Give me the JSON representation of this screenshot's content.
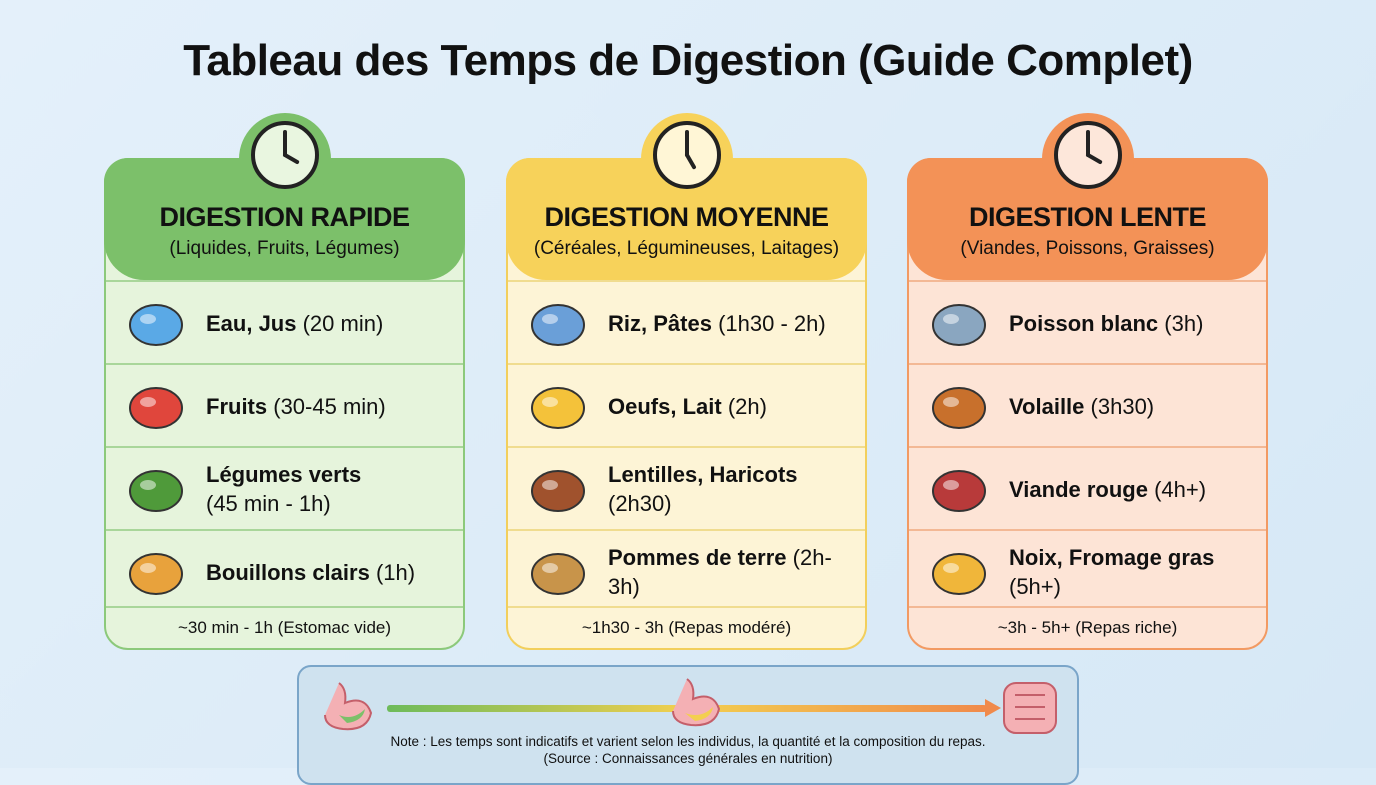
{
  "title": "Tableau des Temps de Digestion (Guide Complet)",
  "columns": [
    {
      "title": "DIGESTION RAPIDE",
      "subtitle": "(Liquides, Fruits, Légumes)",
      "items": [
        {
          "name": "Eau, Jus",
          "time": "(20 min)"
        },
        {
          "name": "Fruits",
          "time": "(30-45 min)"
        },
        {
          "name": "Légumes verts",
          "time": "(45 min - 1h)"
        },
        {
          "name": "Bouillons clairs",
          "time": "(1h)"
        }
      ],
      "footer": "~30 min - 1h (Estomac vide)"
    },
    {
      "title": "DIGESTION MOYENNE",
      "subtitle": "(Céréales, Légumineuses, Laitages)",
      "items": [
        {
          "name": "Riz, Pâtes",
          "time": "(1h30 - 2h)"
        },
        {
          "name": "Oeufs, Lait",
          "time": "(2h)"
        },
        {
          "name": "Lentilles, Haricots",
          "time": "(2h30)"
        },
        {
          "name": "Pommes de terre",
          "time": "(2h-3h)"
        }
      ],
      "footer": "~1h30 - 3h (Repas modéré)"
    },
    {
      "title": "DIGESTION LENTE",
      "subtitle": "(Viandes, Poissons, Graisses)",
      "items": [
        {
          "name": "Poisson blanc",
          "time": "(3h)"
        },
        {
          "name": "Volaille",
          "time": "(3h30)"
        },
        {
          "name": "Viande rouge",
          "time": "(4h+)"
        },
        {
          "name": "Noix, Fromage gras",
          "time": "(5h+)"
        }
      ],
      "footer": "~3h - 5h+ (Repas riche)"
    }
  ],
  "note": {
    "lines": [
      "Note : Les temps sont indicatifs et varient selon les individus, la quantité et la composition du repas.",
      "(Source : Connaissances générales en nutrition)"
    ]
  }
}
